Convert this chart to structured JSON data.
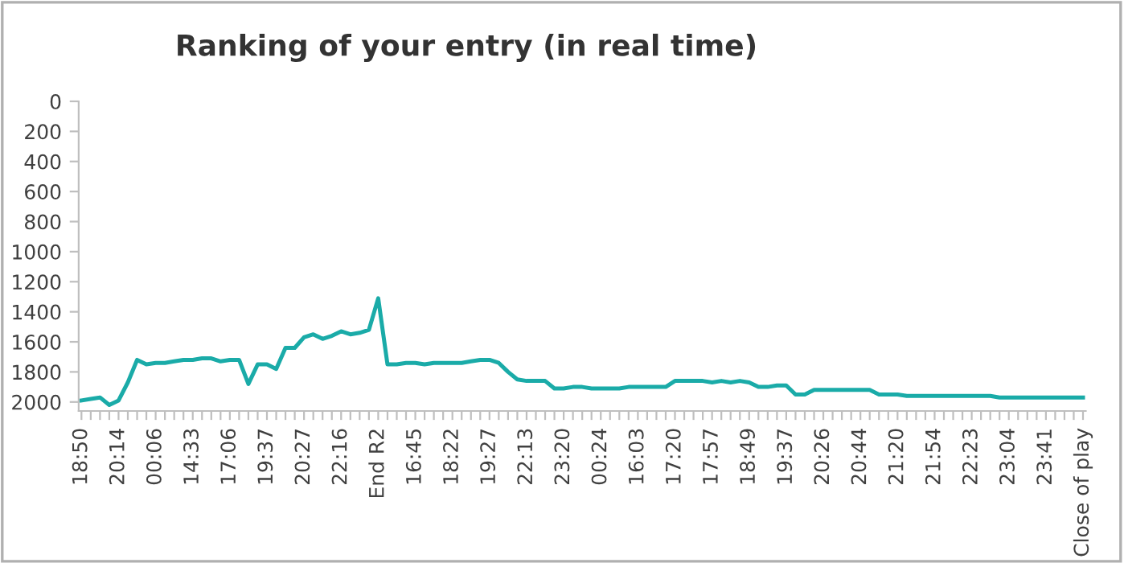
{
  "chart_data": {
    "type": "line",
    "title": "Ranking of your entry (in real time)",
    "categories": [
      "18:50",
      null,
      null,
      null,
      "20:14",
      null,
      null,
      null,
      "00:06",
      null,
      null,
      null,
      "14:33",
      null,
      null,
      null,
      "17:06",
      null,
      null,
      null,
      "19:37",
      null,
      null,
      null,
      "20:27",
      null,
      null,
      null,
      "22:16",
      null,
      null,
      null,
      "End R2",
      null,
      null,
      null,
      "16:45",
      null,
      null,
      null,
      "18:22",
      null,
      null,
      null,
      "19:27",
      null,
      null,
      null,
      "22:13",
      null,
      null,
      null,
      "23:20",
      null,
      null,
      null,
      "00:24",
      null,
      null,
      null,
      "16:03",
      null,
      null,
      null,
      "17:20",
      null,
      null,
      null,
      "17:57",
      null,
      null,
      null,
      "18:49",
      null,
      null,
      null,
      "19:37",
      null,
      null,
      null,
      "20:26",
      null,
      null,
      null,
      "20:44",
      null,
      null,
      null,
      "21:20",
      null,
      null,
      null,
      "21:54",
      null,
      null,
      null,
      "22:23",
      null,
      null,
      null,
      "23:04",
      null,
      null,
      null,
      "23:41",
      null,
      null,
      null,
      "Close of play"
    ],
    "series": [
      {
        "color": "#1aaba8",
        "values": [
          1990,
          1980,
          1970,
          2020,
          1990,
          1870,
          1720,
          1750,
          1740,
          1740,
          1730,
          1720,
          1720,
          1710,
          1710,
          1730,
          1720,
          1720,
          1880,
          1750,
          1750,
          1780,
          1640,
          1640,
          1570,
          1550,
          1580,
          1560,
          1530,
          1550,
          1540,
          1520,
          1310,
          1750,
          1750,
          1740,
          1740,
          1750,
          1740,
          1740,
          1740,
          1740,
          1730,
          1720,
          1720,
          1740,
          1800,
          1850,
          1860,
          1860,
          1860,
          1910,
          1910,
          1900,
          1900,
          1910,
          1910,
          1910,
          1910,
          1900,
          1900,
          1900,
          1900,
          1900,
          1860,
          1860,
          1860,
          1860,
          1870,
          1860,
          1870,
          1860,
          1870,
          1900,
          1900,
          1890,
          1890,
          1950,
          1950,
          1920,
          1920,
          1920,
          1920,
          1920,
          1920,
          1920,
          1950,
          1950,
          1950,
          1960,
          1960,
          1960,
          1960,
          1960,
          1960,
          1960,
          1960,
          1960,
          1960,
          1970,
          1970,
          1970,
          1970,
          1970,
          1970,
          1970,
          1970,
          1970,
          1970
        ]
      }
    ],
    "ylim": [
      2060,
      0
    ],
    "yticks": [
      0,
      200,
      400,
      600,
      800,
      1000,
      1200,
      1400,
      1600,
      1800,
      2000
    ],
    "grid": false,
    "marker": "none",
    "line_style": "solid"
  }
}
